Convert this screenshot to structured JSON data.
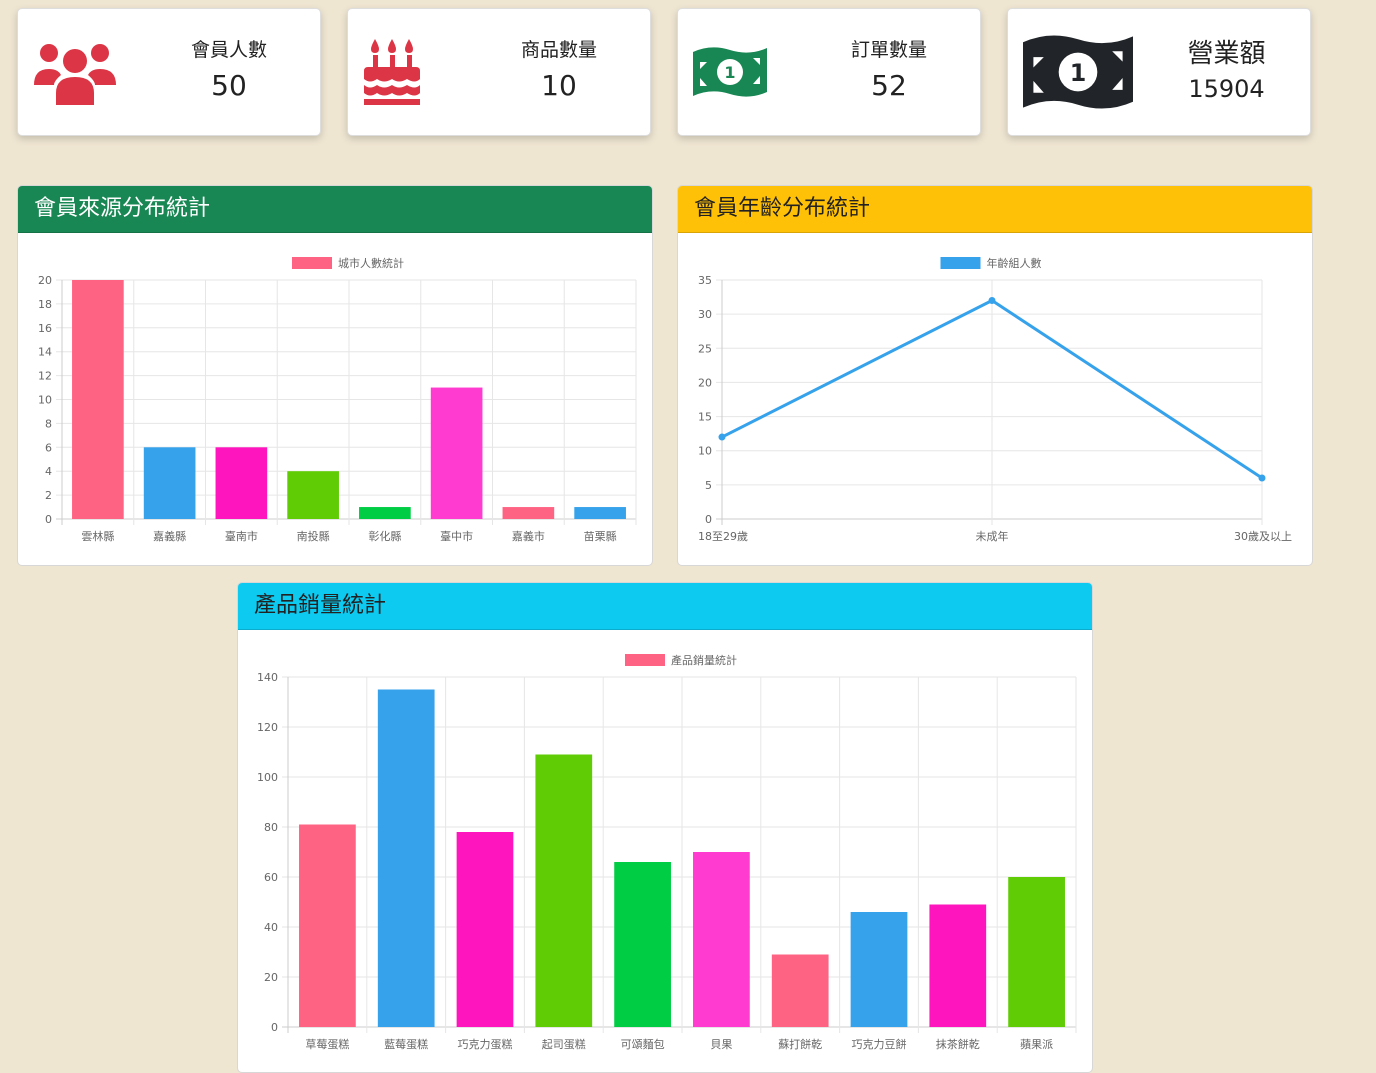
{
  "stats": {
    "members": {
      "label": "會員人數",
      "value": "50",
      "icon": "users-icon",
      "color": "#dc3545"
    },
    "products": {
      "label": "商品數量",
      "value": "10",
      "icon": "birthday-cake-icon",
      "color": "#dc3545"
    },
    "orders": {
      "label": "訂單數量",
      "value": "52",
      "icon": "money-bill-icon",
      "color": "#198754"
    },
    "revenue": {
      "label": "營業額",
      "value": "15904",
      "icon": "money-bill-icon",
      "color": "#212529"
    }
  },
  "panels": {
    "city": {
      "title": "會員來源分布統計",
      "color": "#198754"
    },
    "age": {
      "title": "會員年齡分布統計",
      "color": "#ffc107"
    },
    "sales": {
      "title": "產品銷量統計",
      "color": "#0dcaf0"
    }
  },
  "chart_data": [
    {
      "type": "bar",
      "legend": "城市人數統計",
      "categories": [
        "雲林縣",
        "嘉義縣",
        "臺南市",
        "南投縣",
        "彰化縣",
        "臺中市",
        "嘉義市",
        "苗栗縣"
      ],
      "values": [
        20,
        6,
        6,
        4,
        1,
        11,
        1,
        1
      ],
      "colors": [
        "#ff6384",
        "#36a2eb",
        "#ff15bd",
        "#5fcc05",
        "#00cc44",
        "#ff3ccf",
        "#ff6384",
        "#36a2eb"
      ],
      "ylim": [
        0,
        20
      ],
      "yticks": [
        0,
        2,
        4,
        6,
        8,
        10,
        12,
        14,
        16,
        18,
        20
      ],
      "legend_color": "#ff6384"
    },
    {
      "type": "line",
      "legend": "年齡組人數",
      "categories": [
        "18至29歲",
        "未成年",
        "30歲及以上"
      ],
      "values": [
        12,
        32,
        6
      ],
      "color": "#36a2eb",
      "ylim": [
        0,
        35
      ],
      "yticks": [
        0,
        5,
        10,
        15,
        20,
        25,
        30,
        35
      ],
      "legend_color": "#36a2eb"
    },
    {
      "type": "bar",
      "legend": "產品銷量統計",
      "categories": [
        "草莓蛋糕",
        "藍莓蛋糕",
        "巧克力蛋糕",
        "起司蛋糕",
        "可頌麵包",
        "貝果",
        "蘇打餅乾",
        "巧克力豆餅",
        "抹茶餅乾",
        "蘋果派"
      ],
      "values": [
        81,
        135,
        78,
        109,
        66,
        70,
        29,
        46,
        49,
        60
      ],
      "colors": [
        "#ff6384",
        "#36a2eb",
        "#ff15bd",
        "#5fcc05",
        "#00cc44",
        "#ff3ccf",
        "#ff6384",
        "#36a2eb",
        "#ff15bd",
        "#5fcc05"
      ],
      "ylim": [
        0,
        140
      ],
      "yticks": [
        0,
        20,
        40,
        60,
        80,
        100,
        120,
        140
      ],
      "legend_color": "#ff6384"
    }
  ]
}
